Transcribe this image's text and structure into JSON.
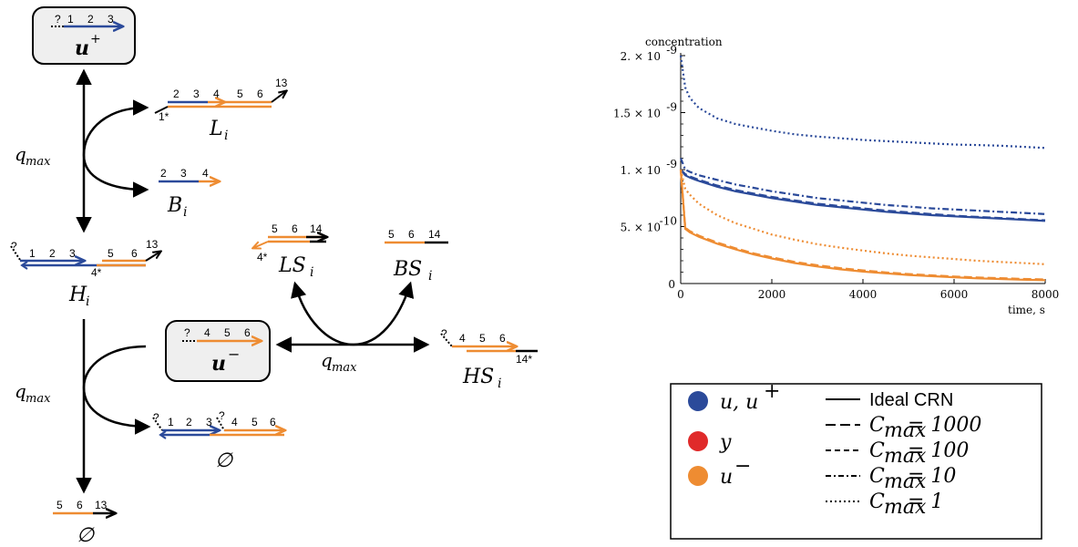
{
  "nodes": {
    "u_plus": {
      "name": "u",
      "sup": "+",
      "strand": [
        "?",
        "1",
        "2",
        "3"
      ]
    },
    "u_minus": {
      "name": "u",
      "sup": "−",
      "strand": [
        "?",
        "4",
        "5",
        "6"
      ]
    },
    "L": {
      "name": "L",
      "sub": "i",
      "strand": [
        "2",
        "3",
        "4",
        "5",
        "6",
        "13"
      ],
      "bottom": "1*"
    },
    "B": {
      "name": "B",
      "sub": "i",
      "strand": [
        "2",
        "3",
        "4"
      ]
    },
    "H": {
      "name": "H",
      "sub": "i",
      "strand": [
        "?",
        "1",
        "2",
        "3",
        "5",
        "6",
        "13"
      ],
      "bottom": "4*"
    },
    "LS": {
      "name": "LS",
      "sub": "i",
      "strand": [
        "5",
        "6",
        "14"
      ],
      "bottom": "4*"
    },
    "BS": {
      "name": "BS",
      "sub": "i",
      "strand": [
        "5",
        "6",
        "14"
      ]
    },
    "HS": {
      "name": "HS",
      "sub": "i",
      "strand": [
        "?",
        "4",
        "5",
        "6"
      ],
      "bottom": "14*"
    },
    "waste1": {
      "name": "∅",
      "strand": [
        "?",
        "1",
        "2",
        "3",
        "?",
        "4",
        "5",
        "6"
      ]
    },
    "waste2": {
      "name": "∅",
      "strand": [
        "5",
        "6",
        "13"
      ]
    }
  },
  "rates": [
    "q",
    "max"
  ],
  "colors": {
    "blue": "#2b4a9a",
    "orange": "#ee8c32",
    "red": "#e02a2a",
    "black": "#000000"
  },
  "chart_data": {
    "type": "line",
    "ylabel": "concentration",
    "xlabel": "time, s",
    "xlim": [
      0,
      8000
    ],
    "ylim": [
      0,
      2e-09
    ],
    "xticks": [
      "0",
      "2000",
      "4000",
      "6000",
      "8000"
    ],
    "yticks": [
      {
        "mant": "0",
        "exp": ""
      },
      {
        "mant": "5. × 10",
        "exp": "-10"
      },
      {
        "mant": "1. × 10",
        "exp": "-9"
      },
      {
        "mant": "1.5 × 10",
        "exp": "-9"
      },
      {
        "mant": "2. × 10",
        "exp": "-9"
      }
    ],
    "x": [
      0,
      100,
      200,
      400,
      800,
      1200,
      1600,
      2000,
      2500,
      3000,
      3500,
      4000,
      4500,
      5000,
      5500,
      6000,
      6500,
      7000,
      7500,
      8000
    ],
    "series": [
      {
        "color": "#2b4a9a",
        "dash": "solid",
        "values": [
          1e-09,
          9.5e-10,
          9.3e-10,
          9e-10,
          8.5e-10,
          8.1e-10,
          7.8e-10,
          7.5e-10,
          7.2e-10,
          6.9e-10,
          6.7e-10,
          6.5e-10,
          6.3e-10,
          6.15e-10,
          6e-10,
          5.9e-10,
          5.8e-10,
          5.7e-10,
          5.6e-10,
          5.5e-10
        ]
      },
      {
        "color": "#2b4a9a",
        "dash": "long",
        "values": [
          1e-09,
          9.6e-10,
          9.4e-10,
          9.1e-10,
          8.6e-10,
          8.2e-10,
          7.9e-10,
          7.6e-10,
          7.3e-10,
          7e-10,
          6.8e-10,
          6.6e-10,
          6.4e-10,
          6.25e-10,
          6.1e-10,
          5.95e-10,
          5.85e-10,
          5.75e-10,
          5.65e-10,
          5.55e-10
        ]
      },
      {
        "color": "#2b4a9a",
        "dash": "dashdot",
        "values": [
          1.1e-09,
          1e-09,
          9.8e-10,
          9.5e-10,
          9.1e-10,
          8.7e-10,
          8.4e-10,
          8.1e-10,
          7.8e-10,
          7.5e-10,
          7.3e-10,
          7.1e-10,
          6.9e-10,
          6.75e-10,
          6.6e-10,
          6.5e-10,
          6.4e-10,
          6.3e-10,
          6.2e-10,
          6.1e-10
        ]
      },
      {
        "color": "#2b4a9a",
        "dash": "dotted",
        "values": [
          2e-09,
          1.72e-09,
          1.63e-09,
          1.54e-09,
          1.45e-09,
          1.4e-09,
          1.37e-09,
          1.34e-09,
          1.31e-09,
          1.29e-09,
          1.275e-09,
          1.26e-09,
          1.25e-09,
          1.24e-09,
          1.23e-09,
          1.22e-09,
          1.215e-09,
          1.21e-09,
          1.2e-09,
          1.19e-09
        ]
      },
      {
        "color": "#ee8c32",
        "dash": "solid",
        "values": [
          1e-09,
          4.8e-10,
          4.5e-10,
          4.1e-10,
          3.5e-10,
          3e-10,
          2.55e-10,
          2.2e-10,
          1.8e-10,
          1.5e-10,
          1.25e-10,
          1.05e-10,
          9e-11,
          7.5e-11,
          6.5e-11,
          5.5e-11,
          4.6e-11,
          4e-11,
          3.4e-11,
          3e-11
        ]
      },
      {
        "color": "#ee8c32",
        "dash": "long",
        "values": [
          1e-09,
          4.9e-10,
          4.6e-10,
          4.2e-10,
          3.6e-10,
          3.1e-10,
          2.65e-10,
          2.3e-10,
          1.9e-10,
          1.6e-10,
          1.35e-10,
          1.15e-10,
          9.8e-11,
          8.3e-11,
          7.2e-11,
          6.2e-11,
          5.4e-11,
          4.7e-11,
          4.1e-11,
          3.6e-11
        ]
      },
      {
        "color": "#ee8c32",
        "dash": "dotted",
        "values": [
          1e-09,
          8.3e-10,
          7.8e-10,
          7e-10,
          6e-10,
          5.3e-10,
          4.8e-10,
          4.3e-10,
          3.85e-10,
          3.45e-10,
          3.15e-10,
          2.9e-10,
          2.65e-10,
          2.45e-10,
          2.3e-10,
          2.15e-10,
          2e-10,
          1.9e-10,
          1.8e-10,
          1.7e-10
        ]
      }
    ]
  },
  "legend": {
    "species": [
      {
        "color": "#2b4a9a",
        "text": "u, u",
        "sup": "+"
      },
      {
        "color": "#e02a2a",
        "text": "y",
        "sup": ""
      },
      {
        "color": "#ee8c32",
        "text": "u",
        "sup": "−"
      }
    ],
    "styles": [
      {
        "dash": "solid",
        "text": "Ideal CRN",
        "math": false
      },
      {
        "dash": "long",
        "text": "C",
        "sub": "max",
        "eq": " = 1000",
        "math": true
      },
      {
        "dash": "short",
        "text": "C",
        "sub": "max",
        "eq": " = 100",
        "math": true
      },
      {
        "dash": "dashdot",
        "text": "C",
        "sub": "max",
        "eq": " = 10",
        "math": true
      },
      {
        "dash": "dotted",
        "text": "C",
        "sub": "max",
        "eq": " = 1",
        "math": true
      }
    ]
  }
}
